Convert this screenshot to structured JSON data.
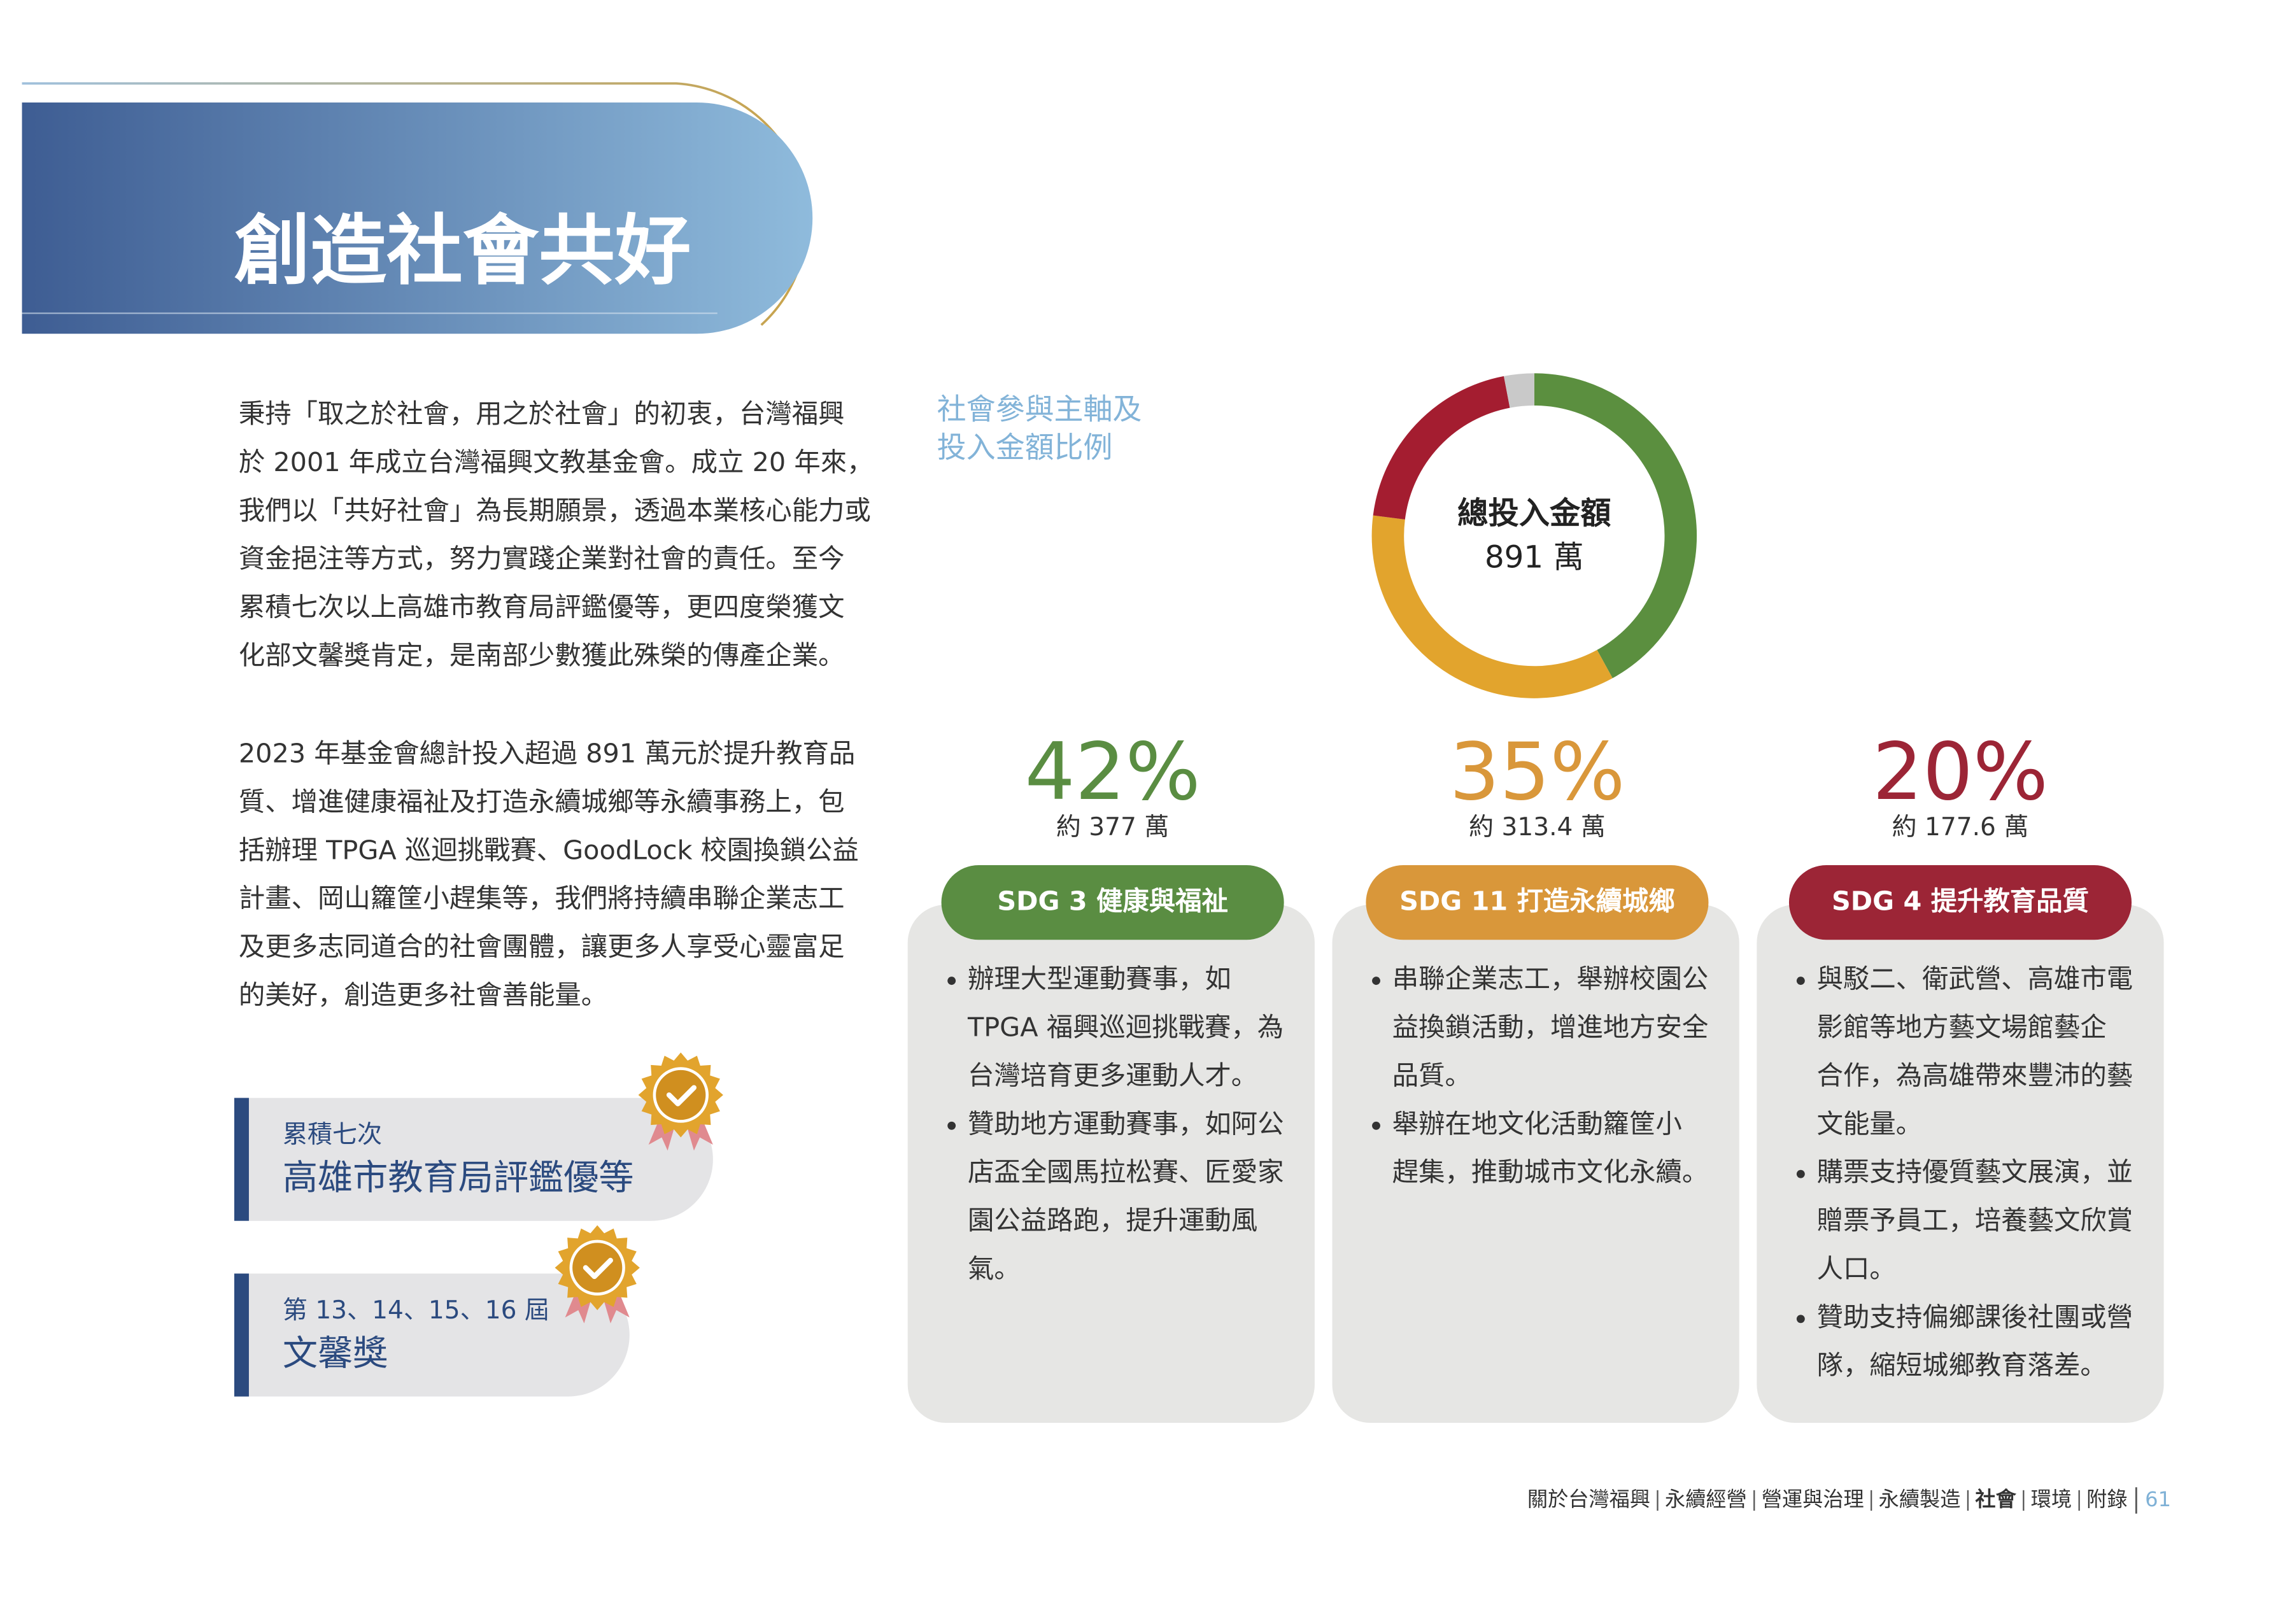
{
  "header": {
    "title": "創造社會共好"
  },
  "intro": {
    "paragraphs": [
      [
        "秉持「取之於社會，用之於社會」的初衷，台灣福興",
        "於 2001 年成立台灣福興文教基金會。成立 20 年來，",
        "我們以「共好社會」為長期願景，透過本業核心能力或",
        "資金挹注等方式，努力實踐企業對社會的責任。至今",
        "累積七次以上高雄市教育局評鑑優等，更四度榮獲文",
        "化部文馨獎肯定，是南部少數獲此殊榮的傳產企業。"
      ],
      [
        "2023 年基金會總計投入超過 891 萬元於提升教育品",
        "質、增進健康福祉及打造永續城鄉等永續事務上，包",
        "括辦理 TPGA 巡迴挑戰賽、GoodLock 校園換鎖公益",
        "計畫、岡山籮筐小趕集等，我們將持續串聯企業志工",
        "及更多志同道合的社會團體，讓更多人享受心靈富足",
        "的美好，創造更多社會善能量。"
      ]
    ]
  },
  "awards": [
    {
      "small": "累積七次",
      "large": "高雄市教育局評鑑優等"
    },
    {
      "small": "第 13、14、15、16 屆",
      "large": "文馨獎"
    }
  ],
  "chart_data": {
    "type": "donut",
    "title": [
      "社會參與主軸及",
      "投入金額比例"
    ],
    "center_label": "總投入金額",
    "center_value": "891 萬",
    "categories": [
      "SDG 3   健康與福祉",
      "SDG 11  打造永續城鄉",
      "SDG 4   提升教育品質",
      null
    ],
    "values": [
      42,
      35,
      20,
      3
    ],
    "value_labels": [
      "42%",
      "35%",
      "20%",
      null
    ],
    "colors": [
      "#5b8f3f",
      "#e2a42d",
      "#a41d30",
      "#c9c9c9"
    ]
  },
  "cards": [
    {
      "amount": "約 377 萬",
      "pill_color": "#5a8d42",
      "text_color": "#5a8d42",
      "bullets": [
        [
          "辦理大型運動賽事，如",
          "TPGA 福興巡迴挑戰賽，為",
          "台灣培育更多運動人才。"
        ],
        [
          "贊助地方運動賽事，如阿公",
          "店盃全國馬拉松賽、匠愛家",
          "園公益路跑，提升運動風",
          "氣。"
        ]
      ]
    },
    {
      "amount": "約 313.4 萬",
      "pill_color": "#d9973a",
      "text_color": "#d9973a",
      "bullets": [
        [
          "串聯企業志工，舉辦校園公",
          "益換鎖活動，增進地方安全",
          "品質。"
        ],
        [
          "舉辦在地文化活動籮筐小",
          "趕集，推動城市文化永續。"
        ]
      ]
    },
    {
      "amount": "約 177.6 萬",
      "pill_color": "#9c2536",
      "text_color": "#9c2536",
      "bullets": [
        [
          "與駁二、衛武營、高雄市電",
          "影館等地方藝文場館藝企",
          "合作，為高雄帶來豐沛的藝",
          "文能量。"
        ],
        [
          "購票支持優質藝文展演，並",
          "贈票予員工，培養藝文欣賞",
          "人口。"
        ],
        [
          "贊助支持偏鄉課後社團或營",
          "隊，縮短城鄉教育落差。"
        ]
      ]
    }
  ],
  "footer": {
    "nav": [
      "關於台灣福興",
      "永續經營",
      "營運與治理",
      "永續製造",
      "社會",
      "環境",
      "附錄"
    ],
    "active": 4,
    "page": "61"
  }
}
